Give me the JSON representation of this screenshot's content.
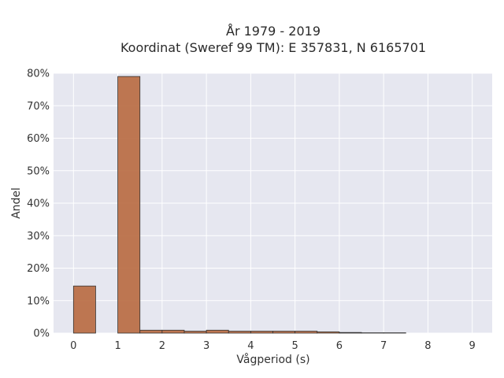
{
  "chart_data": {
    "type": "bar",
    "title_line1": "År 1979 - 2019",
    "title_line2": "Koordinat (Sweref 99 TM): E 357831, N 6165701",
    "xlabel": "Vågperiod (s)",
    "ylabel": "Andel",
    "x_ticks": [
      "0",
      "1",
      "2",
      "3",
      "4",
      "5",
      "6",
      "7",
      "8",
      "9"
    ],
    "y_ticks": [
      "0%",
      "10%",
      "20%",
      "30%",
      "40%",
      "50%",
      "60%",
      "70%",
      "80%"
    ],
    "xlim": [
      -0.45,
      9.45
    ],
    "ylim": [
      0,
      0.8
    ],
    "bin_width": 0.5,
    "bins": [
      {
        "x_start": 0.0,
        "value": 0.145
      },
      {
        "x_start": 1.0,
        "value": 0.79
      },
      {
        "x_start": 1.5,
        "value": 0.009
      },
      {
        "x_start": 2.0,
        "value": 0.009
      },
      {
        "x_start": 2.5,
        "value": 0.006
      },
      {
        "x_start": 3.0,
        "value": 0.009
      },
      {
        "x_start": 3.5,
        "value": 0.006
      },
      {
        "x_start": 4.0,
        "value": 0.006
      },
      {
        "x_start": 4.5,
        "value": 0.006
      },
      {
        "x_start": 5.0,
        "value": 0.006
      },
      {
        "x_start": 5.5,
        "value": 0.004
      },
      {
        "x_start": 6.0,
        "value": 0.002
      },
      {
        "x_start": 6.5,
        "value": 0.001
      },
      {
        "x_start": 7.0,
        "value": 0.001
      }
    ],
    "grid": true,
    "colors": {
      "bar": "#b8693f",
      "plot_bg": "#e6e7f0",
      "grid": "#ffffff"
    }
  }
}
